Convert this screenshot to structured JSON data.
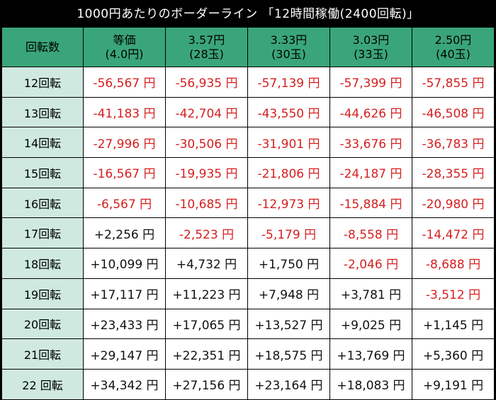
{
  "title": "1000円あたりのボーダーライン 「12時間稼働(2400回転)」",
  "header": {
    "row_label": "回転数",
    "columns": [
      {
        "line1": "等価",
        "line2": "(4.0円)"
      },
      {
        "line1": "3.57円",
        "line2": "(28玉)"
      },
      {
        "line1": "3.33円",
        "line2": "(30玉)"
      },
      {
        "line1": "3.03円",
        "line2": "(33玉)"
      },
      {
        "line1": "2.50円",
        "line2": "(40玉)"
      }
    ]
  },
  "rows": [
    {
      "label": "12回転",
      "cells": [
        "-56,567 円",
        "-56,935 円",
        "-57,139 円",
        "-57,399 円",
        "-57,855 円"
      ]
    },
    {
      "label": "13回転",
      "cells": [
        "-41,183 円",
        "-42,704 円",
        "-43,550 円",
        "-44,626 円",
        "-46,508 円"
      ]
    },
    {
      "label": "14回転",
      "cells": [
        "-27,996 円",
        "-30,506 円",
        "-31,901 円",
        "-33,676 円",
        "-36,783 円"
      ]
    },
    {
      "label": "15回転",
      "cells": [
        "-16,567 円",
        "-19,935 円",
        "-21,806 円",
        "-24,187 円",
        "-28,355 円"
      ]
    },
    {
      "label": "16回転",
      "cells": [
        "-6,567 円",
        "-10,685 円",
        "-12,973 円",
        "-15,884 円",
        "-20,980 円"
      ]
    },
    {
      "label": "17回転",
      "cells": [
        "+2,256 円",
        "-2,523 円",
        "-5,179 円",
        "-8,558 円",
        "-14,472 円"
      ]
    },
    {
      "label": "18回転",
      "cells": [
        "+10,099 円",
        "+4,732 円",
        "+1,750 円",
        "-2,046 円",
        "-8,688 円"
      ]
    },
    {
      "label": "19回転",
      "cells": [
        "+17,117 円",
        "+11,223 円",
        "+7,948 円",
        "+3,781 円",
        "-3,512 円"
      ]
    },
    {
      "label": "20回転",
      "cells": [
        "+23,433 円",
        "+17,065 円",
        "+13,527 円",
        "+9,025 円",
        "+1,145 円"
      ]
    },
    {
      "label": "21回転",
      "cells": [
        "+29,147 円",
        "+22,351 円",
        "+18,575 円",
        "+13,769 円",
        "+5,360 円"
      ]
    },
    {
      "label": "22 回転",
      "cells": [
        "+34,342 円",
        "+27,156 円",
        "+23,164 円",
        "+18,083 円",
        "+9,191 円"
      ]
    }
  ],
  "colors": {
    "header_bg": "#3aa57a",
    "row_label_bg": "#cfe9e1",
    "negative_text": "#d51f1f",
    "positive_text": "#111111"
  }
}
